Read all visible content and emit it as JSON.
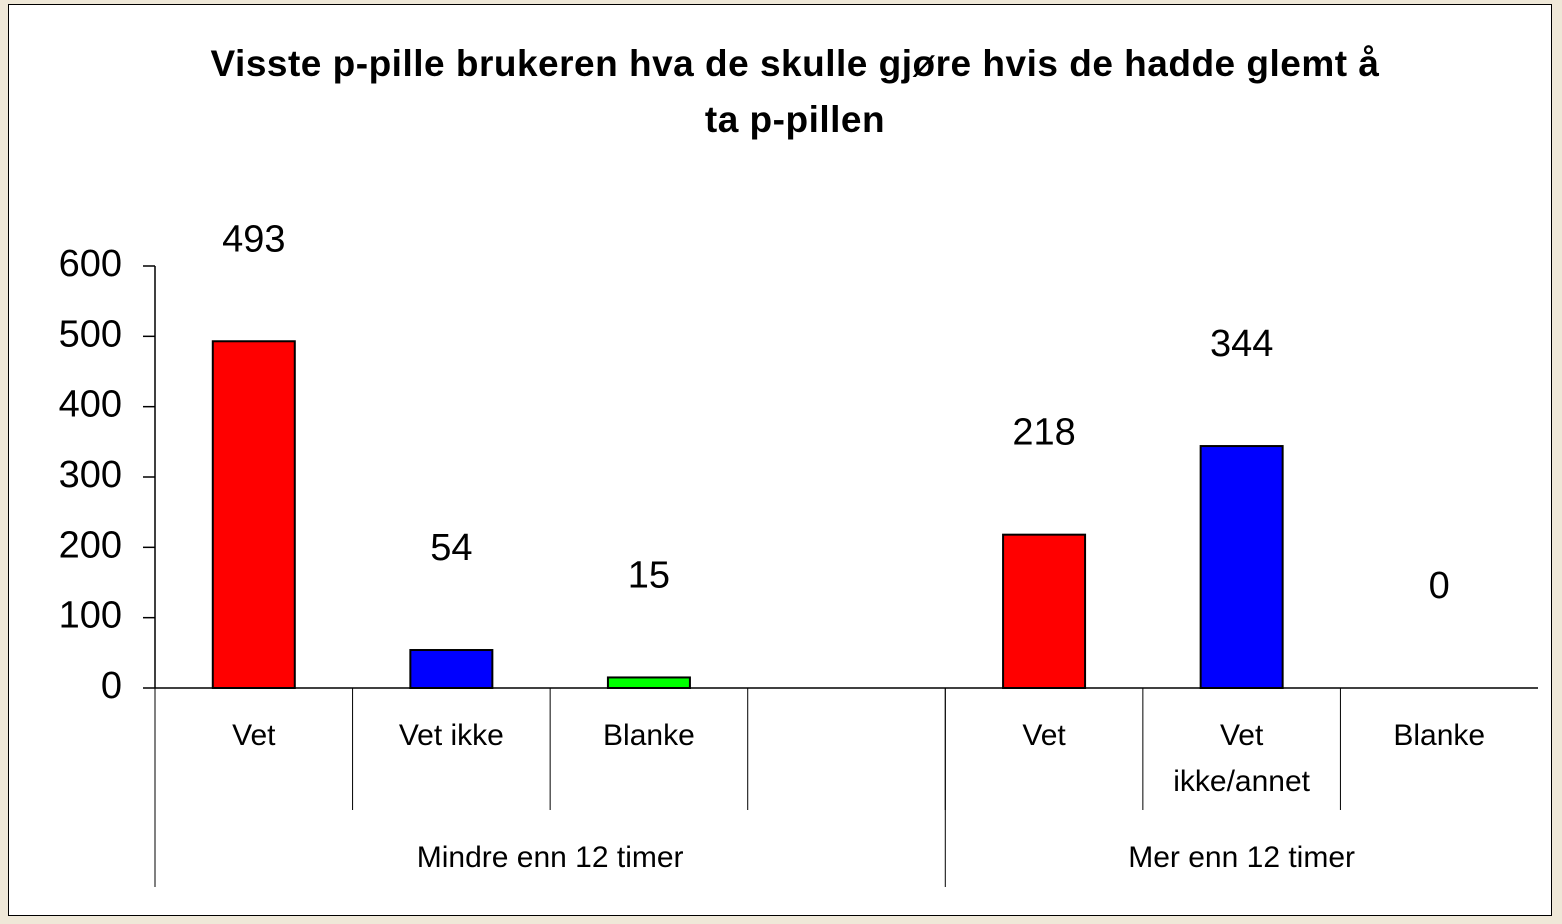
{
  "chart_data": {
    "type": "bar",
    "title": "Visste p-pille brukeren hva de skulle gjøre hvis de hadde glemt å ta p-pillen",
    "categories": [
      "Vet",
      "Vet ikke",
      "Blanke",
      null,
      "Vet",
      "Vet ikke/annet",
      "Blanke"
    ],
    "values": [
      493,
      54,
      15,
      null,
      218,
      344,
      0
    ],
    "colors": [
      "#ff0000",
      "#0000ff",
      "#00ff00",
      null,
      "#ff0000",
      "#0000ff",
      "#00ff00"
    ],
    "groups": [
      {
        "label": "Mindre enn 12 timer",
        "span": 4
      },
      {
        "label": "Mer enn 12 timer",
        "span": 3
      }
    ],
    "ylim": [
      0,
      600
    ],
    "yticks": [
      0,
      100,
      200,
      300,
      400,
      500,
      600
    ],
    "grid": false
  }
}
